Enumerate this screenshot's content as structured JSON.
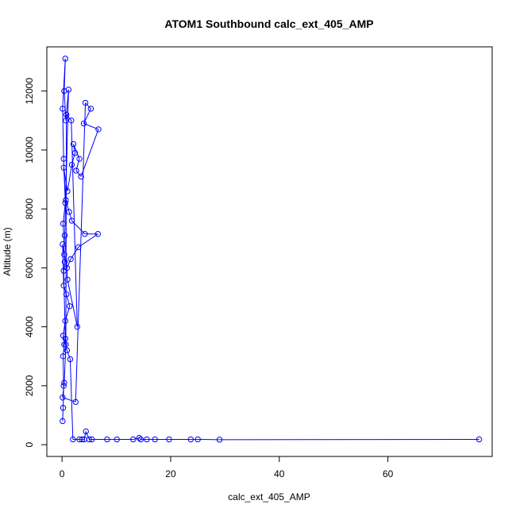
{
  "chart_data": {
    "type": "scatter",
    "title": "ATOM1 Southbound calc_ext_405_AMP",
    "xlabel": "calc_ext_405_AMP",
    "ylabel": "Altitude (m)",
    "xlim": [
      -2.8,
      79.2
    ],
    "ylim": [
      -400,
      13500
    ],
    "x_ticks": [
      0,
      20,
      40,
      60
    ],
    "y_ticks": [
      0,
      2000,
      4000,
      6000,
      8000,
      10000,
      12000
    ],
    "grid": false,
    "connect_points": true,
    "series": [
      {
        "color": "#0000ff",
        "marker": "open-circle",
        "points": [
          [
            0.1,
            800
          ],
          [
            0.2,
            1250
          ],
          [
            0.3,
            2000
          ],
          [
            0.2,
            3000
          ],
          [
            0.4,
            3400
          ],
          [
            0.6,
            3600
          ],
          [
            0.3,
            5900
          ],
          [
            0.5,
            6200
          ],
          [
            0.2,
            7500
          ],
          [
            0.6,
            8200
          ],
          [
            0.3,
            9700
          ],
          [
            0.1,
            11400
          ],
          [
            0.6,
            13100
          ],
          [
            0.4,
            12000
          ],
          [
            0.7,
            11000
          ],
          [
            1.2,
            12050
          ],
          [
            0.5,
            7100
          ],
          [
            1.0,
            5600
          ],
          [
            2.8,
            4000
          ],
          [
            1.7,
            11000
          ],
          [
            0.8,
            11200
          ],
          [
            0.7,
            3400
          ],
          [
            0.4,
            2100
          ],
          [
            0.1,
            1600
          ],
          [
            2.5,
            1450
          ],
          [
            4.3,
            11600
          ],
          [
            5.3,
            11400
          ],
          [
            4.0,
            10900
          ],
          [
            6.7,
            10700
          ],
          [
            3.5,
            9100
          ],
          [
            2.6,
            9300
          ],
          [
            3.2,
            9700
          ],
          [
            2.1,
            10200
          ],
          [
            2.4,
            9900
          ],
          [
            1.8,
            9500
          ],
          [
            1.0,
            8600
          ],
          [
            0.3,
            9400
          ],
          [
            0.7,
            8300
          ],
          [
            1.3,
            7900
          ],
          [
            1.8,
            7600
          ],
          [
            4.2,
            7150
          ],
          [
            6.6,
            7150
          ],
          [
            3.0,
            6700
          ],
          [
            1.6,
            6300
          ],
          [
            0.9,
            6000
          ],
          [
            0.4,
            6450
          ],
          [
            0.1,
            6800
          ],
          [
            0.3,
            5400
          ],
          [
            0.8,
            5100
          ],
          [
            1.4,
            4700
          ],
          [
            0.6,
            4200
          ],
          [
            0.2,
            3700
          ],
          [
            0.9,
            3200
          ],
          [
            1.5,
            2900
          ],
          [
            2.0,
            180
          ],
          [
            3.2,
            180
          ],
          [
            3.7,
            180
          ],
          [
            4.1,
            180
          ],
          [
            4.4,
            450
          ],
          [
            5.0,
            180
          ],
          [
            5.5,
            180
          ],
          [
            8.3,
            180
          ],
          [
            10.1,
            180
          ],
          [
            13.1,
            180
          ],
          [
            14.2,
            230
          ],
          [
            14.5,
            180
          ],
          [
            15.6,
            180
          ],
          [
            17.1,
            180
          ],
          [
            19.7,
            180
          ],
          [
            23.7,
            180
          ],
          [
            25.0,
            180
          ],
          [
            29.0,
            170
          ],
          [
            76.8,
            180
          ]
        ]
      }
    ]
  }
}
